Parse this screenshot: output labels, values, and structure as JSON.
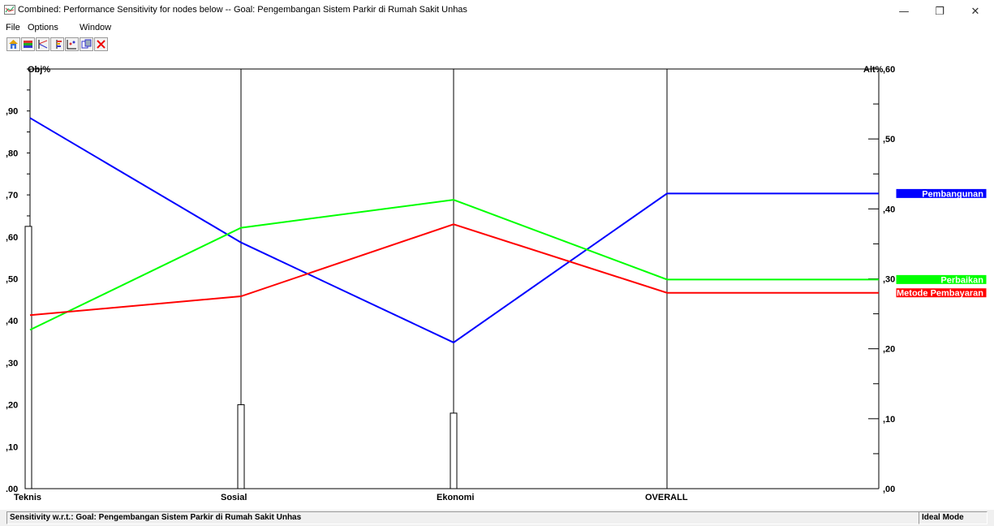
{
  "window": {
    "title": "Combined: Performance Sensitivity for nodes below -- Goal: Pengembangan Sistem Parkir di Rumah Sakit Unhas",
    "controls": {
      "minimize": "—",
      "restore": "❐",
      "close": "✕"
    }
  },
  "menu": [
    "File",
    "Options",
    "Window"
  ],
  "toolbar": {
    "buttons": [
      {
        "icon": "home-icon"
      },
      {
        "icon": "stack-icon"
      },
      {
        "icon": "gradient-icon"
      },
      {
        "icon": "dynamic-icon"
      },
      {
        "icon": "2d-plot-icon"
      },
      {
        "icon": "diff-icon"
      },
      {
        "icon": "close-x-icon"
      }
    ]
  },
  "status": {
    "left": "Sensitivity w.r.t.: Goal: Pengembangan Sistem Parkir di Rumah Sakit Unhas",
    "right": "Ideal Mode"
  },
  "chart_data": {
    "type": "line",
    "categories": [
      "Teknis",
      "Sosial",
      "Ekonomi",
      "OVERALL"
    ],
    "left_axis": {
      "label": "Obj%",
      "range": [
        0,
        1.0
      ],
      "ticks": [
        ".00",
        ",10",
        ",20",
        ",30",
        ",40",
        ",50",
        ",60",
        ",70",
        ",80",
        ",90"
      ]
    },
    "right_axis": {
      "label": "Alt%",
      "range": [
        0,
        0.6
      ],
      "ticks": [
        ",00",
        ",10",
        ",20",
        ",30",
        ",40",
        ",50",
        ",60"
      ]
    },
    "bars": [
      0.625,
      0.2,
      0.18
    ],
    "series": [
      {
        "name": "Pembangunan",
        "color": "#0000ff",
        "values": [
          0.53,
          0.352,
          0.209,
          0.422
        ]
      },
      {
        "name": "Perbaikan",
        "color": "#00ff00",
        "values": [
          0.227,
          0.373,
          0.413,
          0.299
        ]
      },
      {
        "name": "Metode Pembayaran",
        "color": "#ff0000",
        "values": [
          0.248,
          0.275,
          0.378,
          0.28
        ]
      }
    ]
  }
}
